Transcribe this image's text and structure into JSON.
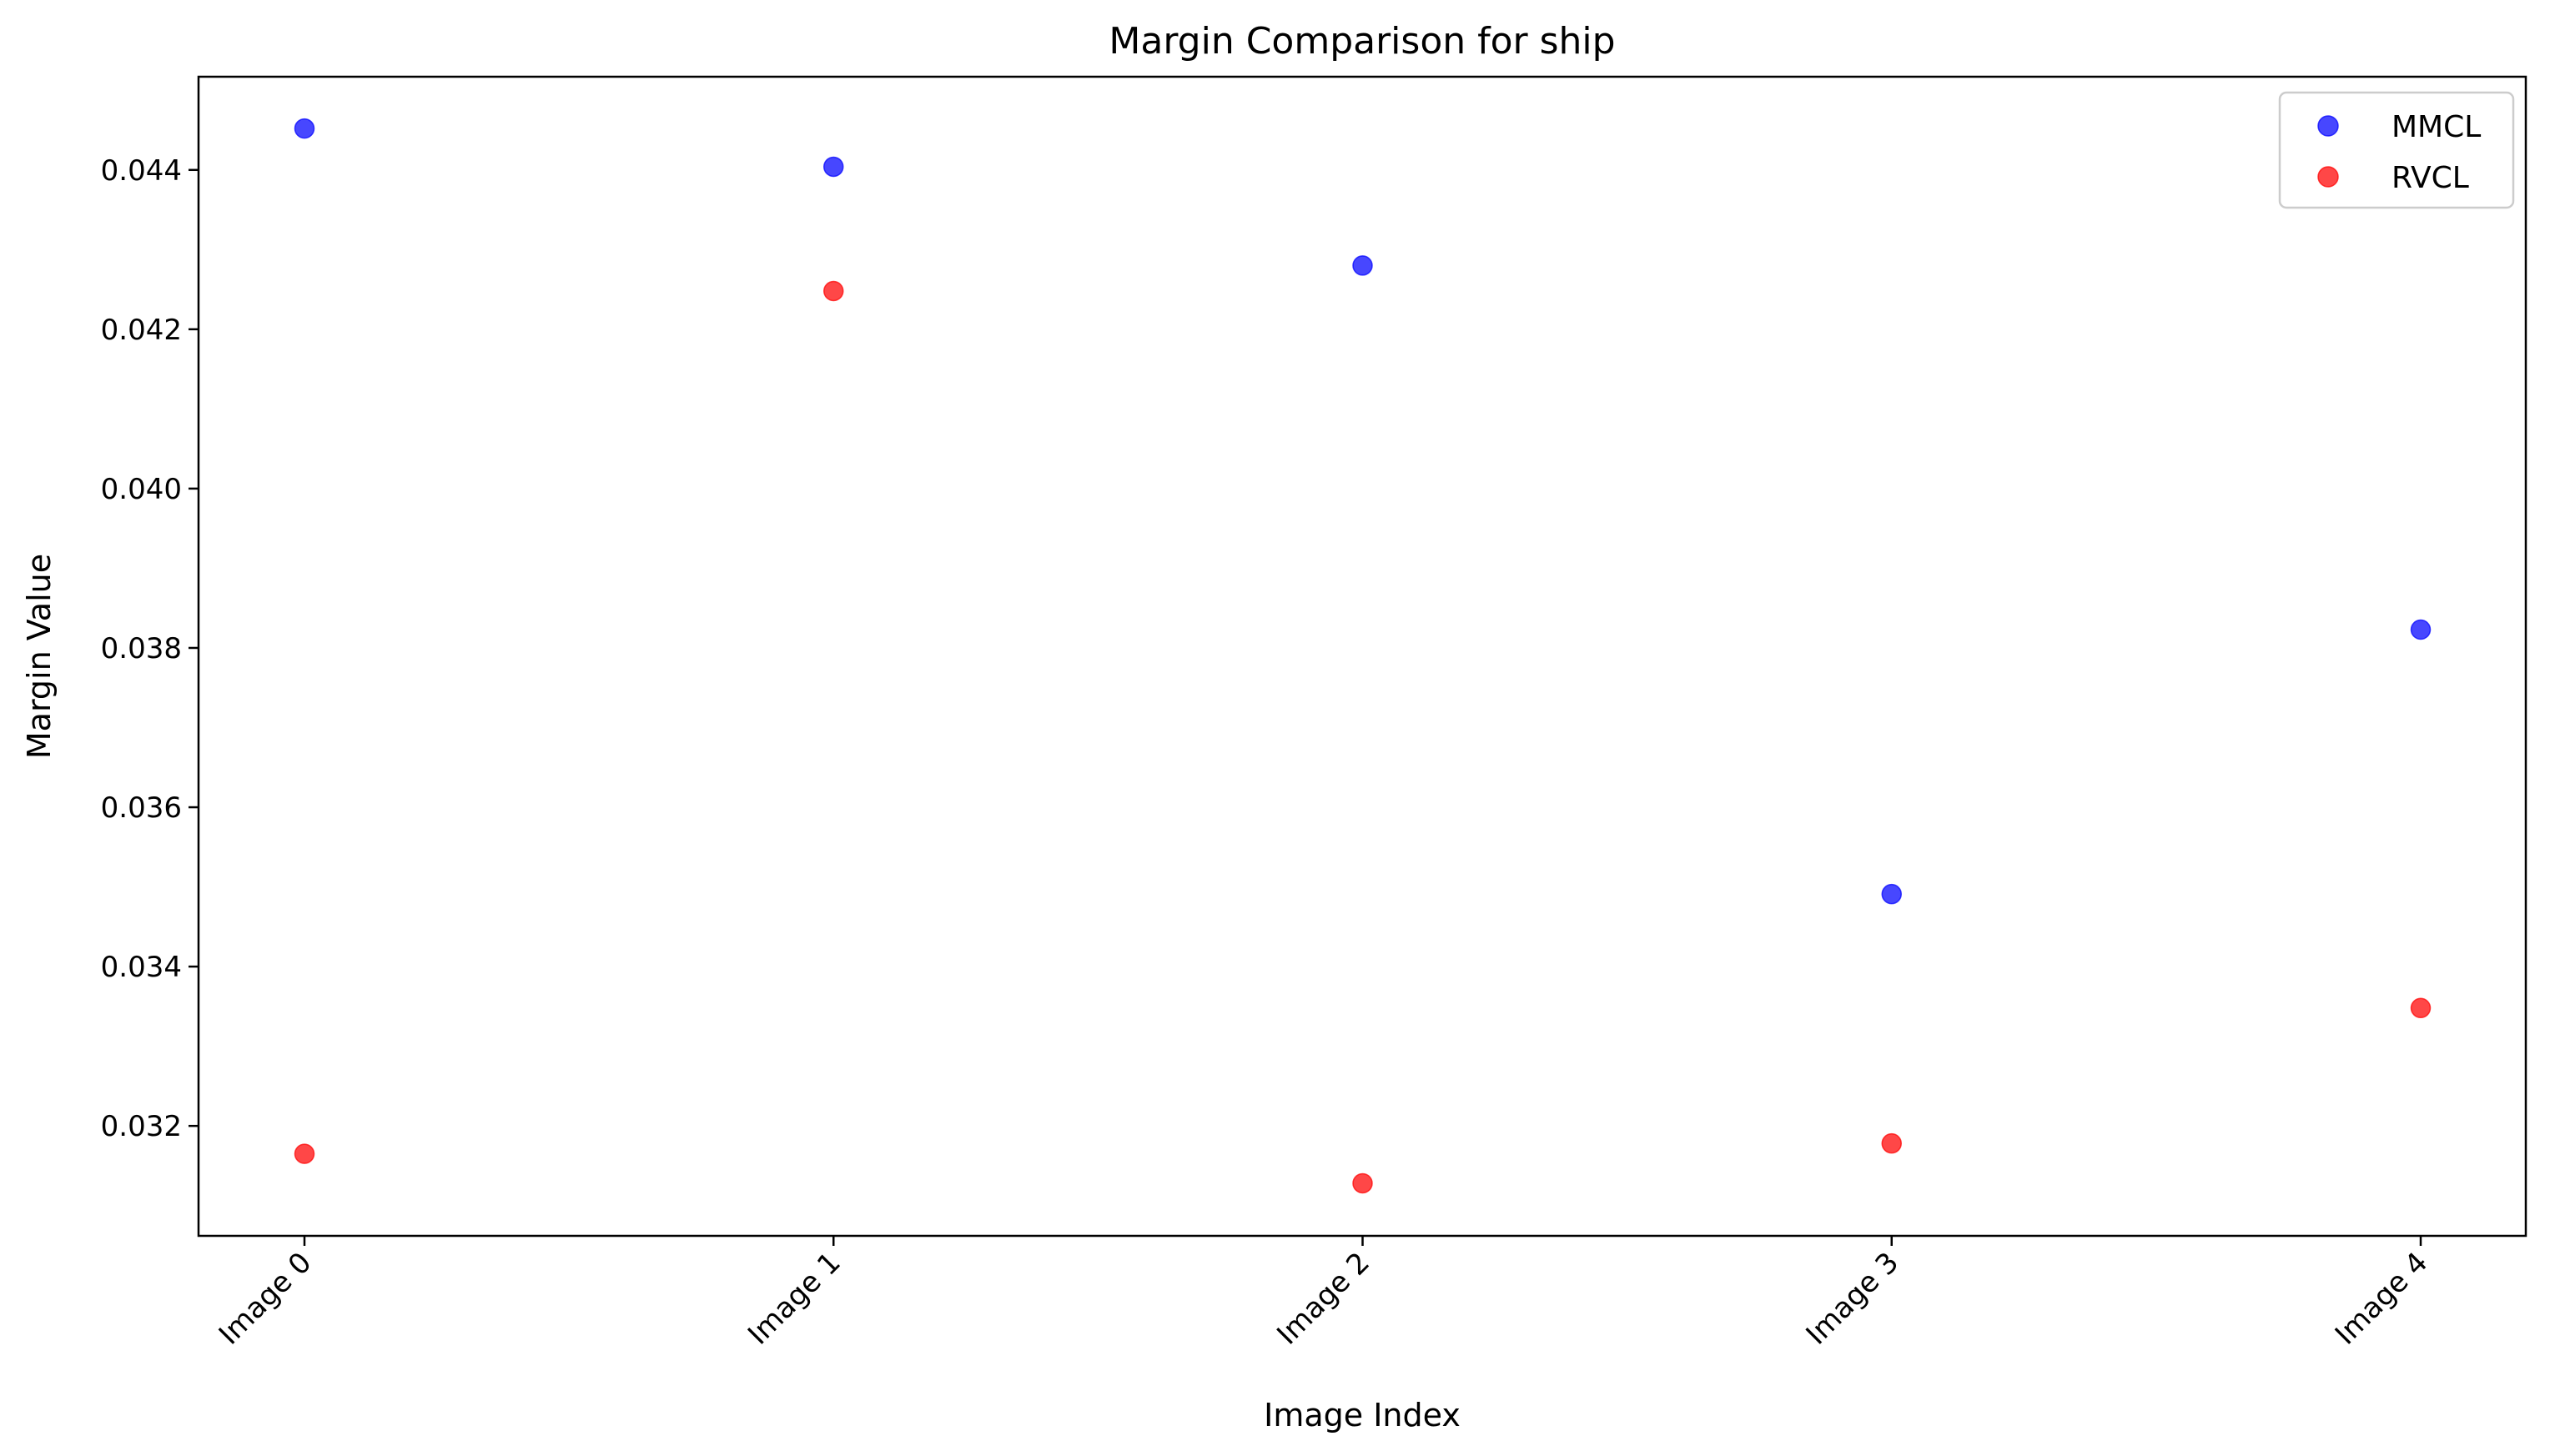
{
  "chart_data": {
    "type": "scatter",
    "title": "Margin Comparison for ship",
    "xlabel": "Image Index",
    "ylabel": "Margin Value",
    "categories": [
      "Image 0",
      "Image 1",
      "Image 2",
      "Image 3",
      "Image 4"
    ],
    "series": [
      {
        "name": "MMCL",
        "color": "#0000ff",
        "values": [
          0.04452,
          0.04404,
          0.0428,
          0.03491,
          0.03823
        ]
      },
      {
        "name": "RVCL",
        "color": "#ff0000",
        "values": [
          0.03165,
          0.04248,
          0.03128,
          0.03178,
          0.03348
        ]
      }
    ],
    "yticks": [
      "0.032",
      "0.034",
      "0.036",
      "0.038",
      "0.040",
      "0.042",
      "0.044"
    ],
    "ylim": [
      0.03062,
      0.04517
    ],
    "grid": false,
    "legend_position": "top-right"
  }
}
